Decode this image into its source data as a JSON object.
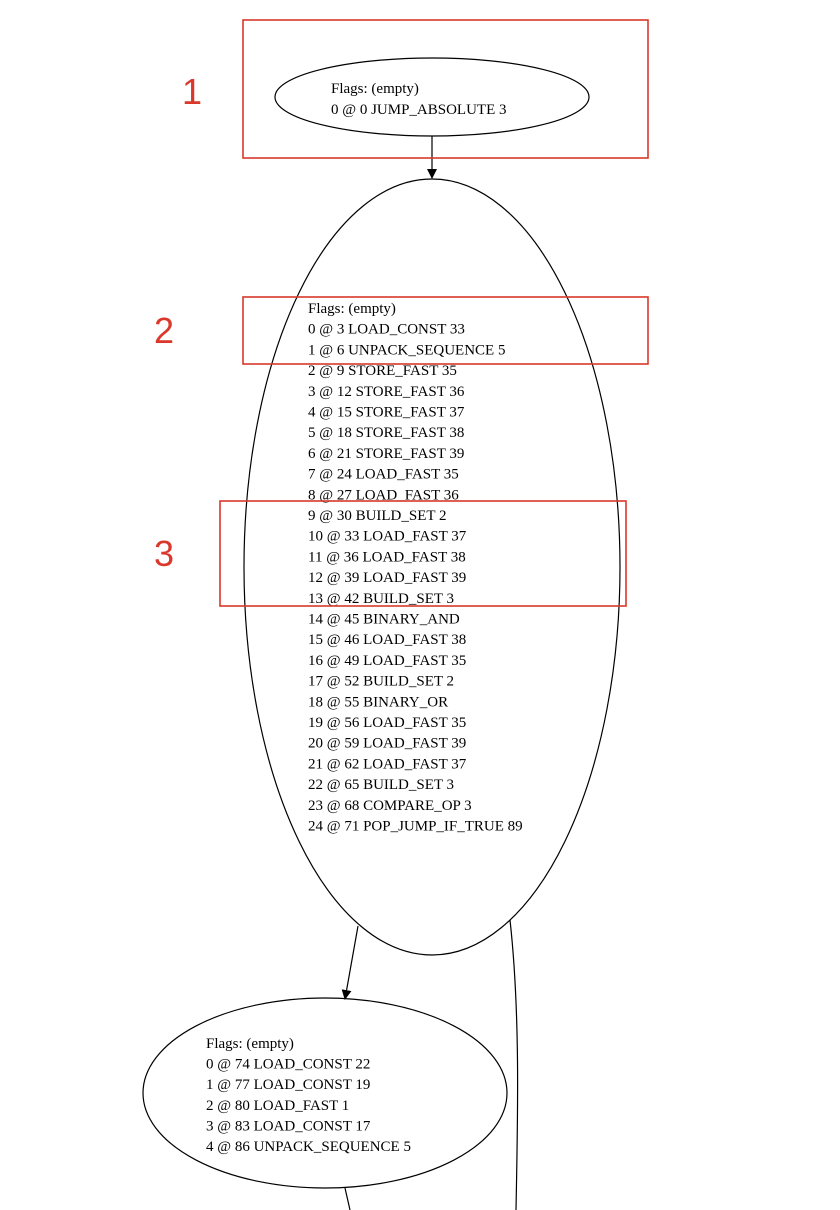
{
  "colors": {
    "highlight": "#d9382b",
    "stroke": "#000000",
    "background": "#ffffff"
  },
  "nodes": [
    {
      "id": "block-1",
      "lines": [
        "Flags: (empty)",
        "0 @ 0 JUMP_ABSOLUTE 3"
      ]
    },
    {
      "id": "block-2",
      "lines": [
        "Flags: (empty)",
        "0 @ 3 LOAD_CONST 33",
        "1 @ 6 UNPACK_SEQUENCE 5",
        "2 @ 9 STORE_FAST 35",
        "3 @ 12 STORE_FAST 36",
        "4 @ 15 STORE_FAST 37",
        "5 @ 18 STORE_FAST 38",
        "6 @ 21 STORE_FAST 39",
        "7 @ 24 LOAD_FAST 35",
        "8 @ 27 LOAD_FAST 36",
        "9 @ 30 BUILD_SET 2",
        "10 @ 33 LOAD_FAST 37",
        "11 @ 36 LOAD_FAST 38",
        "12 @ 39 LOAD_FAST 39",
        "13 @ 42 BUILD_SET 3",
        "14 @ 45 BINARY_AND",
        "15 @ 46 LOAD_FAST 38",
        "16 @ 49 LOAD_FAST 35",
        "17 @ 52 BUILD_SET 2",
        "18 @ 55 BINARY_OR",
        "19 @ 56 LOAD_FAST 35",
        "20 @ 59 LOAD_FAST 39",
        "21 @ 62 LOAD_FAST 37",
        "22 @ 65 BUILD_SET 3",
        "23 @ 68 COMPARE_OP 3",
        "24 @ 71 POP_JUMP_IF_TRUE 89"
      ]
    },
    {
      "id": "block-3",
      "lines": [
        "Flags: (empty)",
        "0 @ 74 LOAD_CONST 22",
        "1 @ 77 LOAD_CONST 19",
        "2 @ 80 LOAD_FAST 1",
        "3 @ 83 LOAD_CONST 17",
        "4 @ 86 UNPACK_SEQUENCE 5"
      ]
    }
  ],
  "callouts": [
    {
      "label": "1"
    },
    {
      "label": "2"
    },
    {
      "label": "3"
    }
  ]
}
